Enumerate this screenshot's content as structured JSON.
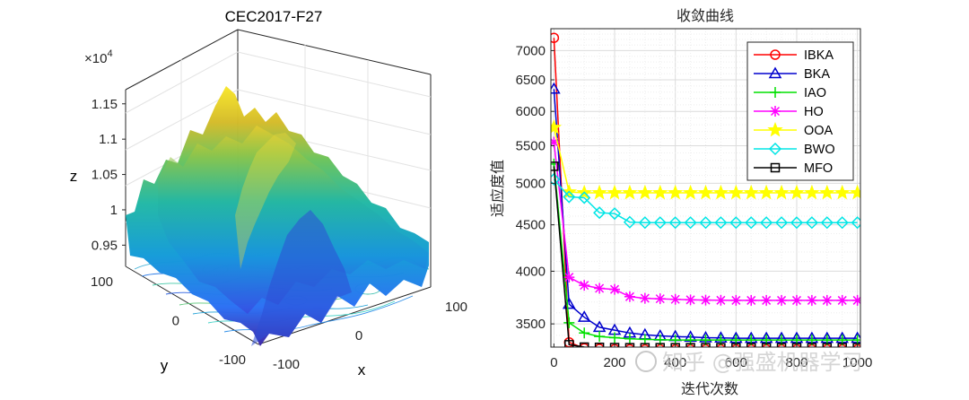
{
  "chart_data": [
    {
      "type": "surface3d",
      "title": "CEC2017-F27",
      "xlabel": "x",
      "ylabel": "y",
      "zlabel": "z",
      "z_exponent": "×10",
      "z_exponent_power": "4",
      "xlim": [
        -100,
        100
      ],
      "ylim": [
        -100,
        100
      ],
      "zlim": [
        0.92,
        1.17
      ],
      "x_ticks": [
        "-100",
        "100"
      ],
      "y_ticks": [
        "100",
        "0",
        "-100"
      ],
      "z_ticks": [
        "1.15",
        "1.1",
        "1.05",
        "1",
        "0.95"
      ],
      "x_tick_values": [
        -100,
        100
      ],
      "y_tick_values": [
        100,
        0,
        -100
      ],
      "z_tick_values": [
        1.15,
        1.1,
        1.05,
        1.0,
        0.95
      ],
      "x_mid_tick": "0",
      "x_mid_tick_value": 0,
      "colormap": "parula"
    },
    {
      "type": "line",
      "title": "收敛曲线",
      "xlabel": "迭代次数",
      "ylabel": "适应度值",
      "y_scale": "log",
      "xlim": [
        -10,
        1010
      ],
      "ylim": [
        3300,
        7400
      ],
      "x_ticks": [
        0,
        200,
        400,
        600,
        800,
        1000
      ],
      "x_tick_labels": [
        "0",
        "200",
        "400",
        "600",
        "800",
        "1000"
      ],
      "y_ticks": [
        3500,
        4000,
        4500,
        5000,
        5500,
        6000,
        6500,
        7000
      ],
      "y_tick_labels": [
        "3500",
        "4000",
        "4500",
        "5000",
        "5500",
        "6000",
        "6500",
        "7000"
      ],
      "grid": true,
      "legend_position": "top-right",
      "x": [
        0,
        50,
        100,
        150,
        200,
        250,
        300,
        350,
        400,
        450,
        500,
        550,
        600,
        650,
        700,
        750,
        800,
        850,
        900,
        950,
        1000
      ],
      "series": [
        {
          "name": "IBKA",
          "color": "#ff0000",
          "marker": "circle",
          "values": [
            7230,
            3340,
            3290,
            3285,
            3282,
            3281,
            3280,
            3280,
            3280,
            3280,
            3280,
            3280,
            3280,
            3280,
            3280,
            3280,
            3280,
            3280,
            3280,
            3280,
            3280
          ]
        },
        {
          "name": "BKA",
          "color": "#0000cd",
          "marker": "triangle",
          "values": [
            6350,
            3680,
            3560,
            3470,
            3445,
            3420,
            3405,
            3395,
            3390,
            3385,
            3380,
            3378,
            3375,
            3375,
            3375,
            3375,
            3375,
            3375,
            3375,
            3375,
            3375
          ]
        },
        {
          "name": "IAO",
          "color": "#00e000",
          "marker": "plus",
          "values": [
            5250,
            3510,
            3420,
            3390,
            3380,
            3370,
            3365,
            3362,
            3360,
            3360,
            3360,
            3360,
            3360,
            3360,
            3360,
            3360,
            3360,
            3360,
            3360,
            3360,
            3360
          ]
        },
        {
          "name": "HO",
          "color": "#ff00ff",
          "marker": "asterisk",
          "values": [
            5550,
            3940,
            3860,
            3830,
            3820,
            3750,
            3735,
            3730,
            3725,
            3720,
            3718,
            3716,
            3715,
            3715,
            3715,
            3715,
            3715,
            3715,
            3715,
            3715,
            3715
          ]
        },
        {
          "name": "OOA",
          "color": "#ffff00",
          "marker": "star",
          "values": [
            5760,
            4890,
            4880,
            4880,
            4880,
            4880,
            4880,
            4880,
            4880,
            4880,
            4880,
            4880,
            4880,
            4880,
            4880,
            4880,
            4880,
            4880,
            4880,
            4880,
            4880
          ]
        },
        {
          "name": "BWO",
          "color": "#00e5e5",
          "marker": "diamond",
          "values": [
            5050,
            4830,
            4820,
            4640,
            4630,
            4530,
            4525,
            4525,
            4525,
            4525,
            4525,
            4525,
            4525,
            4525,
            4525,
            4525,
            4525,
            4525,
            4525,
            4525,
            4525
          ]
        },
        {
          "name": "MFO",
          "color": "#000000",
          "marker": "square",
          "values": [
            5220,
            3320,
            3300,
            3298,
            3296,
            3295,
            3295,
            3295,
            3295,
            3295,
            3295,
            3295,
            3295,
            3295,
            3295,
            3295,
            3295,
            3295,
            3295,
            3295,
            3295
          ]
        }
      ]
    }
  ],
  "watermark": "知乎 @强盛机器学习"
}
